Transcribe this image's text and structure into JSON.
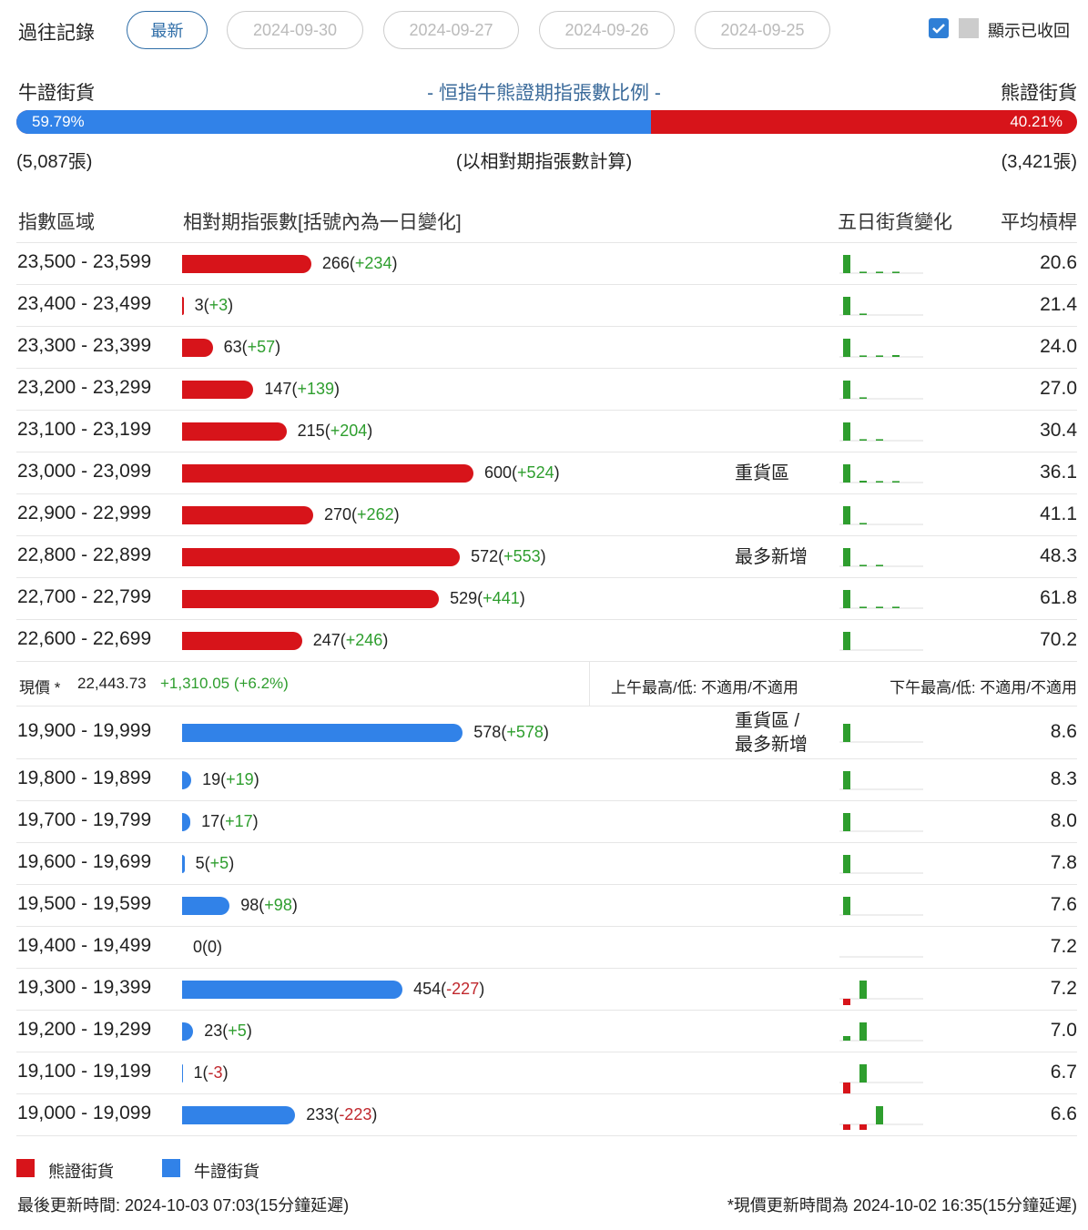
{
  "header": {
    "title": "過往記錄",
    "tabs": [
      "最新",
      "2024-09-30",
      "2024-09-27",
      "2024-09-26",
      "2024-09-25"
    ],
    "toggle_label": "顯示已收回"
  },
  "ratio": {
    "left_label": "牛證街貨",
    "title": "- 恒指牛熊證期指張數比例 -",
    "right_label": "熊證街貨",
    "bull": {
      "value": 59.79,
      "label": "59.79%"
    },
    "bear": {
      "value": 40.21,
      "label": "40.21%"
    },
    "bull_count": "(5,087張)",
    "note": "(以相對期指張數計算)",
    "bear_count": "(3,421張)"
  },
  "columns": [
    "指數區域",
    "相對期指張數[括號內為一日變化]",
    "五日街貨變化",
    "平均槓桿"
  ],
  "bear_rows": [
    {
      "range": "23,500 - 23,599",
      "count": 266,
      "change": {
        "value": 234,
        "label": "+234"
      },
      "leverage": "20.6",
      "five_day": [
        1,
        0.08,
        0.08,
        0.08,
        0
      ]
    },
    {
      "range": "23,400 - 23,499",
      "count": 3,
      "change": {
        "value": 3,
        "label": "+3"
      },
      "leverage": "21.4",
      "five_day": [
        1,
        0.08,
        0,
        0,
        0
      ]
    },
    {
      "range": "23,300 - 23,399",
      "count": 63,
      "change": {
        "value": 57,
        "label": "+57"
      },
      "leverage": "24.0",
      "five_day": [
        1,
        0.08,
        0.08,
        0.1,
        0
      ]
    },
    {
      "range": "23,200 - 23,299",
      "count": 147,
      "change": {
        "value": 139,
        "label": "+139"
      },
      "leverage": "27.0",
      "five_day": [
        1,
        0.08,
        0,
        0,
        0
      ]
    },
    {
      "range": "23,100 - 23,199",
      "count": 215,
      "change": {
        "value": 204,
        "label": "+204"
      },
      "leverage": "30.4",
      "five_day": [
        1,
        0.08,
        0.08,
        0,
        0
      ]
    },
    {
      "range": "23,000 - 23,099",
      "count": 600,
      "change": {
        "value": 524,
        "label": "+524"
      },
      "note": [
        "重貨區"
      ],
      "leverage": "36.1",
      "five_day": [
        1,
        0.1,
        0.08,
        0.08,
        0
      ]
    },
    {
      "range": "22,900 - 22,999",
      "count": 270,
      "change": {
        "value": 262,
        "label": "+262"
      },
      "leverage": "41.1",
      "five_day": [
        1,
        0.08,
        0,
        0,
        0
      ]
    },
    {
      "range": "22,800 - 22,899",
      "count": 572,
      "change": {
        "value": 553,
        "label": "+553"
      },
      "note": [
        "最多新增"
      ],
      "leverage": "48.3",
      "five_day": [
        1,
        0.08,
        0.08,
        0,
        0
      ]
    },
    {
      "range": "22,700 - 22,799",
      "count": 529,
      "change": {
        "value": 441,
        "label": "+441"
      },
      "leverage": "61.8",
      "five_day": [
        1,
        0.08,
        0.08,
        0.08,
        0
      ]
    },
    {
      "range": "22,600 - 22,699",
      "count": 247,
      "change": {
        "value": 246,
        "label": "+246"
      },
      "leverage": "70.2",
      "five_day": [
        1,
        0,
        0,
        0,
        0
      ]
    }
  ],
  "current": {
    "label": "現價 *",
    "price": "22,443.73",
    "change": "+1,310.05 (+6.2%)",
    "am": "上午最高/低: 不適用/不適用",
    "pm": "下午最高/低: 不適用/不適用"
  },
  "bull_rows": [
    {
      "range": "19,900 - 19,999",
      "count": 578,
      "change": {
        "value": 578,
        "label": "+578"
      },
      "note": [
        "重貨區 /",
        "最多新增"
      ],
      "leverage": "8.6",
      "five_day": [
        1,
        0,
        0,
        0,
        0
      ]
    },
    {
      "range": "19,800 - 19,899",
      "count": 19,
      "change": {
        "value": 19,
        "label": "+19"
      },
      "leverage": "8.3",
      "five_day": [
        1,
        0,
        0,
        0,
        0
      ]
    },
    {
      "range": "19,700 - 19,799",
      "count": 17,
      "change": {
        "value": 17,
        "label": "+17"
      },
      "leverage": "8.0",
      "five_day": [
        1,
        0,
        0,
        0,
        0
      ]
    },
    {
      "range": "19,600 - 19,699",
      "count": 5,
      "change": {
        "value": 5,
        "label": "+5"
      },
      "leverage": "7.8",
      "five_day": [
        1,
        0,
        0,
        0,
        0
      ]
    },
    {
      "range": "19,500 - 19,599",
      "count": 98,
      "change": {
        "value": 98,
        "label": "+98"
      },
      "leverage": "7.6",
      "five_day": [
        1,
        0,
        0,
        0,
        0
      ]
    },
    {
      "range": "19,400 - 19,499",
      "count": 0,
      "change": {
        "value": 0,
        "label": "0"
      },
      "leverage": "7.2",
      "five_day": [
        0,
        0,
        0,
        0,
        0
      ]
    },
    {
      "range": "19,300 - 19,399",
      "count": 454,
      "change": {
        "value": -227,
        "label": "-227"
      },
      "leverage": "7.2",
      "five_day": [
        -0.35,
        1,
        0,
        0,
        0
      ]
    },
    {
      "range": "19,200 - 19,299",
      "count": 23,
      "change": {
        "value": 5,
        "label": "+5"
      },
      "leverage": "7.0",
      "five_day": [
        0.25,
        1,
        0,
        0,
        0
      ]
    },
    {
      "range": "19,100 - 19,199",
      "count": 1,
      "change": {
        "value": -3,
        "label": "-3"
      },
      "leverage": "6.7",
      "five_day": [
        -0.8,
        1,
        0,
        0,
        0
      ]
    },
    {
      "range": "19,000 - 19,099",
      "count": 233,
      "change": {
        "value": -223,
        "label": "-223"
      },
      "leverage": "6.6",
      "five_day": [
        -0.3,
        -0.3,
        1,
        0,
        0
      ]
    }
  ],
  "legend": [
    {
      "name": "熊證街貨",
      "color": "#d7141a"
    },
    {
      "name": "牛證街貨",
      "color": "#3182e8"
    }
  ],
  "footer": {
    "left": "最後更新時間: 2024-10-03 07:03(15分鐘延遲)",
    "right": "*現價更新時間為 2024-10-02 16:35(15分鐘延遲)"
  }
}
